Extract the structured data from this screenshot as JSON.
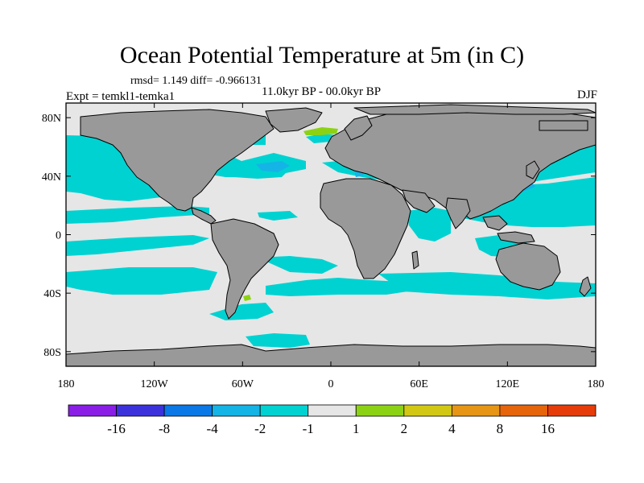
{
  "title": "Ocean Potential Temperature at 5m (in C)",
  "stats": "rmsd= 1.149 diff= -0.966131",
  "experiment": "Expt = temkl1-temka1",
  "period": "11.0kyr BP - 00.0kyr BP",
  "season": "DJF",
  "axes": {
    "x_ticks": [
      "180",
      "120W",
      "60W",
      "0",
      "60E",
      "120E",
      "180"
    ],
    "y_ticks": [
      "80N",
      "40N",
      "0",
      "40S",
      "80S"
    ]
  },
  "colorbar": {
    "labels": [
      "-16",
      "-8",
      "-4",
      "-2",
      "-1",
      "1",
      "2",
      "4",
      "8",
      "16"
    ],
    "colors": [
      "#8a1ee6",
      "#3c32dc",
      "#0a78e6",
      "#14b4e6",
      "#00d2d2",
      "#e6e6e6",
      "#8cd214",
      "#d2c814",
      "#e69614",
      "#e6640a",
      "#e63c0a"
    ]
  },
  "colors": {
    "land": "#999999",
    "ocean_neutral": "#e6e6e6",
    "cooling_light": "#00d2d2",
    "cooling_mid": "#14b4e6",
    "warming": "#8cd214"
  }
}
